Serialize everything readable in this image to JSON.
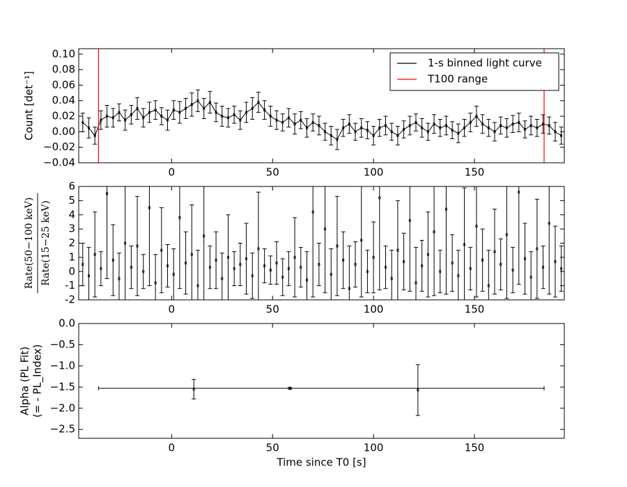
{
  "chart_data": [
    {
      "type": "line",
      "ylabel": "Count [det⁻¹]",
      "x": [
        -44,
        -41,
        -38,
        -35,
        -32,
        -29,
        -26,
        -23,
        -20,
        -17,
        -14,
        -11,
        -8,
        -5,
        -2,
        1,
        4,
        7,
        10,
        13,
        16,
        19,
        22,
        25,
        28,
        31,
        34,
        37,
        40,
        43,
        46,
        49,
        52,
        55,
        58,
        61,
        64,
        67,
        70,
        73,
        76,
        79,
        82,
        85,
        88,
        91,
        94,
        97,
        100,
        103,
        106,
        109,
        112,
        115,
        118,
        121,
        124,
        127,
        130,
        133,
        136,
        139,
        142,
        145,
        148,
        151,
        154,
        157,
        160,
        163,
        166,
        169,
        172,
        175,
        178,
        181,
        184,
        187,
        190,
        193
      ],
      "series": [
        {
          "name": "1-s binned light curve",
          "color": "#000000",
          "values": [
            0.012,
            0.005,
            -0.005,
            0.015,
            0.02,
            0.018,
            0.025,
            0.015,
            0.022,
            0.03,
            0.018,
            0.025,
            0.028,
            0.02,
            0.015,
            0.028,
            0.025,
            0.03,
            0.035,
            0.04,
            0.03,
            0.038,
            0.025,
            0.02,
            0.018,
            0.022,
            0.015,
            0.025,
            0.03,
            0.038,
            0.028,
            0.02,
            0.015,
            0.012,
            0.018,
            0.01,
            0.015,
            0.005,
            0.012,
            0.008,
            0.0,
            -0.005,
            -0.01,
            0.005,
            0.01,
            0.0,
            0.005,
            0.002,
            -0.005,
            0.005,
            0.008,
            0.0,
            -0.005,
            0.003,
            0.008,
            0.012,
            0.005,
            0.0,
            0.01,
            0.005,
            0.008,
            0.002,
            -0.002,
            0.005,
            0.012,
            0.02,
            0.01,
            0.005,
            0.0,
            0.008,
            0.005,
            0.01,
            0.012,
            0.003,
            0.008,
            0.005,
            0.01,
            0.008,
            0.0,
            -0.005
          ],
          "errors": [
            0.012,
            0.013,
            0.011,
            0.012,
            0.014,
            0.012,
            0.011,
            0.013,
            0.012,
            0.014,
            0.012,
            0.013,
            0.012,
            0.011,
            0.013,
            0.012,
            0.014,
            0.013,
            0.015,
            0.014,
            0.013,
            0.014,
            0.012,
            0.013,
            0.012,
            0.011,
            0.012,
            0.013,
            0.014,
            0.013,
            0.012,
            0.013,
            0.012,
            0.011,
            0.012,
            0.013,
            0.011,
            0.012,
            0.011,
            0.012,
            0.011,
            0.012,
            0.013,
            0.011,
            0.012,
            0.011,
            0.012,
            0.011,
            0.012,
            0.011,
            0.012,
            0.011,
            0.012,
            0.011,
            0.012,
            0.011,
            0.012,
            0.011,
            0.012,
            0.011,
            0.012,
            0.011,
            0.012,
            0.011,
            0.012,
            0.013,
            0.012,
            0.011,
            0.012,
            0.011,
            0.012,
            0.011,
            0.012,
            0.011,
            0.012,
            0.011,
            0.012,
            0.011,
            0.012,
            0.011
          ]
        }
      ],
      "vlines": {
        "name": "T100 range",
        "color": "#ff0000",
        "x": [
          -36.2,
          184.5
        ]
      },
      "legend": "upper right",
      "xlim": [
        -46,
        194.5
      ],
      "ylim": [
        -0.04,
        0.107
      ],
      "xticks": [
        0,
        50,
        100,
        150
      ],
      "yticks": [
        {
          "value": -0.04,
          "label": "−0.04"
        },
        {
          "value": -0.02,
          "label": "−0.02"
        },
        {
          "value": 0,
          "label": "0.00"
        },
        {
          "value": 0.02,
          "label": "0.02"
        },
        {
          "value": 0.04,
          "label": "0.04"
        },
        {
          "value": 0.06,
          "label": "0.06"
        },
        {
          "value": 0.08,
          "label": "0.08"
        },
        {
          "value": 0.1,
          "label": "0.10"
        }
      ]
    },
    {
      "type": "errorbar",
      "ylabel_numerator": "Rate(50−100 keV)",
      "ylabel_denominator": "Rate(15−25 keV)",
      "x": [
        -44,
        -41,
        -38,
        -35,
        -32,
        -29,
        -26,
        -23,
        -20,
        -17,
        -14,
        -11,
        -8,
        -5,
        -2,
        1,
        4,
        7,
        10,
        13,
        16,
        19,
        22,
        25,
        28,
        31,
        34,
        37,
        40,
        43,
        46,
        49,
        52,
        55,
        58,
        61,
        64,
        67,
        70,
        73,
        76,
        79,
        82,
        85,
        88,
        91,
        94,
        97,
        100,
        103,
        106,
        109,
        112,
        115,
        118,
        121,
        124,
        127,
        130,
        133,
        136,
        139,
        142,
        145,
        148,
        151,
        154,
        157,
        160,
        163,
        166,
        169,
        172,
        175,
        178,
        181,
        184,
        187,
        190,
        193
      ],
      "series": [
        {
          "color": "#000000",
          "values": [
            0.5,
            -0.3,
            1.2,
            0.2,
            5.5,
            0.8,
            -0.5,
            2.0,
            0.3,
            1.8,
            0.0,
            4.5,
            -0.8,
            1.5,
            0.4,
            -0.2,
            3.8,
            0.6,
            1.2,
            -1.0,
            2.5,
            0.3,
            0.8,
            -0.5,
            1.0,
            0.2,
            0.5,
            0.9,
            -0.3,
            1.6,
            0.4,
            0.1,
            0.6,
            -0.4,
            0.2,
            1.0,
            0.3,
            -0.6,
            4.2,
            0.5,
            3.0,
            -0.2,
            1.8,
            0.8,
            -1.2,
            0.5,
            2.2,
            0.0,
            1.0,
            5.2,
            0.3,
            -0.5,
            1.5,
            0.7,
            3.6,
            -0.8,
            0.4,
            1.2,
            2.8,
            0.0,
            4.4,
            0.6,
            -0.3,
            1.9,
            0.2,
            3.2,
            0.8,
            -1.0,
            1.4,
            0.5,
            2.6,
            0.1,
            5.6,
            0.9,
            -0.4,
            1.6,
            0.3,
            3.4,
            0.7,
            0.2
          ],
          "errors": [
            1.5,
            2.0,
            3.0,
            1.2,
            6.0,
            2.5,
            1.8,
            4.0,
            1.5,
            3.5,
            1.2,
            5.5,
            2.0,
            3.0,
            1.5,
            1.8,
            5.0,
            2.2,
            3.5,
            2.5,
            4.5,
            1.5,
            2.0,
            1.8,
            3.0,
            1.2,
            1.5,
            2.5,
            1.6,
            4.0,
            1.2,
            1.0,
            1.5,
            1.3,
            1.2,
            2.8,
            1.4,
            2.0,
            6.0,
            1.5,
            4.5,
            1.8,
            3.5,
            2.0,
            3.0,
            1.6,
            4.0,
            1.5,
            2.5,
            6.5,
            1.5,
            2.0,
            3.5,
            2.0,
            5.0,
            2.5,
            1.8,
            3.0,
            4.5,
            1.5,
            6.0,
            2.0,
            1.8,
            4.0,
            1.5,
            5.0,
            2.2,
            2.5,
            3.0,
            1.8,
            4.5,
            1.6,
            6.5,
            2.5,
            1.8,
            3.5,
            1.5,
            5.0,
            2.5,
            1.6
          ]
        }
      ],
      "xlim": [
        -46,
        194.5
      ],
      "ylim": [
        -2,
        6
      ],
      "xticks": [
        0,
        50,
        100,
        150
      ],
      "yticks": [
        -2,
        -1,
        0,
        1,
        2,
        3,
        4,
        5,
        6
      ]
    },
    {
      "type": "errorbar",
      "ylabel": [
        "Alpha (PL Fit)",
        "(= - PL_Index)"
      ],
      "xlabel": "Time since T0 [s]",
      "series": [
        {
          "color": "#000000",
          "x": [
            11,
            122,
            58.6
          ],
          "values": [
            -1.55,
            -1.57,
            -1.53
          ],
          "errors": [
            0.23,
            0.6,
            0.02
          ]
        }
      ],
      "span": {
        "x": [
          -36.2,
          184.5
        ],
        "value": -1.53
      },
      "xlim": [
        -46,
        194.5
      ],
      "ylim": [
        -2.71,
        0
      ],
      "xticks": [
        0,
        50,
        100,
        150
      ],
      "yticks": [
        {
          "value": -2.5,
          "label": "−2.5"
        },
        {
          "value": -2,
          "label": "−2.0"
        },
        {
          "value": -1.5,
          "label": "−1.5"
        },
        {
          "value": -1,
          "label": "−1.0"
        },
        {
          "value": -0.5,
          "label": "−0.5"
        },
        {
          "value": 0,
          "label": "0.0"
        }
      ]
    }
  ]
}
